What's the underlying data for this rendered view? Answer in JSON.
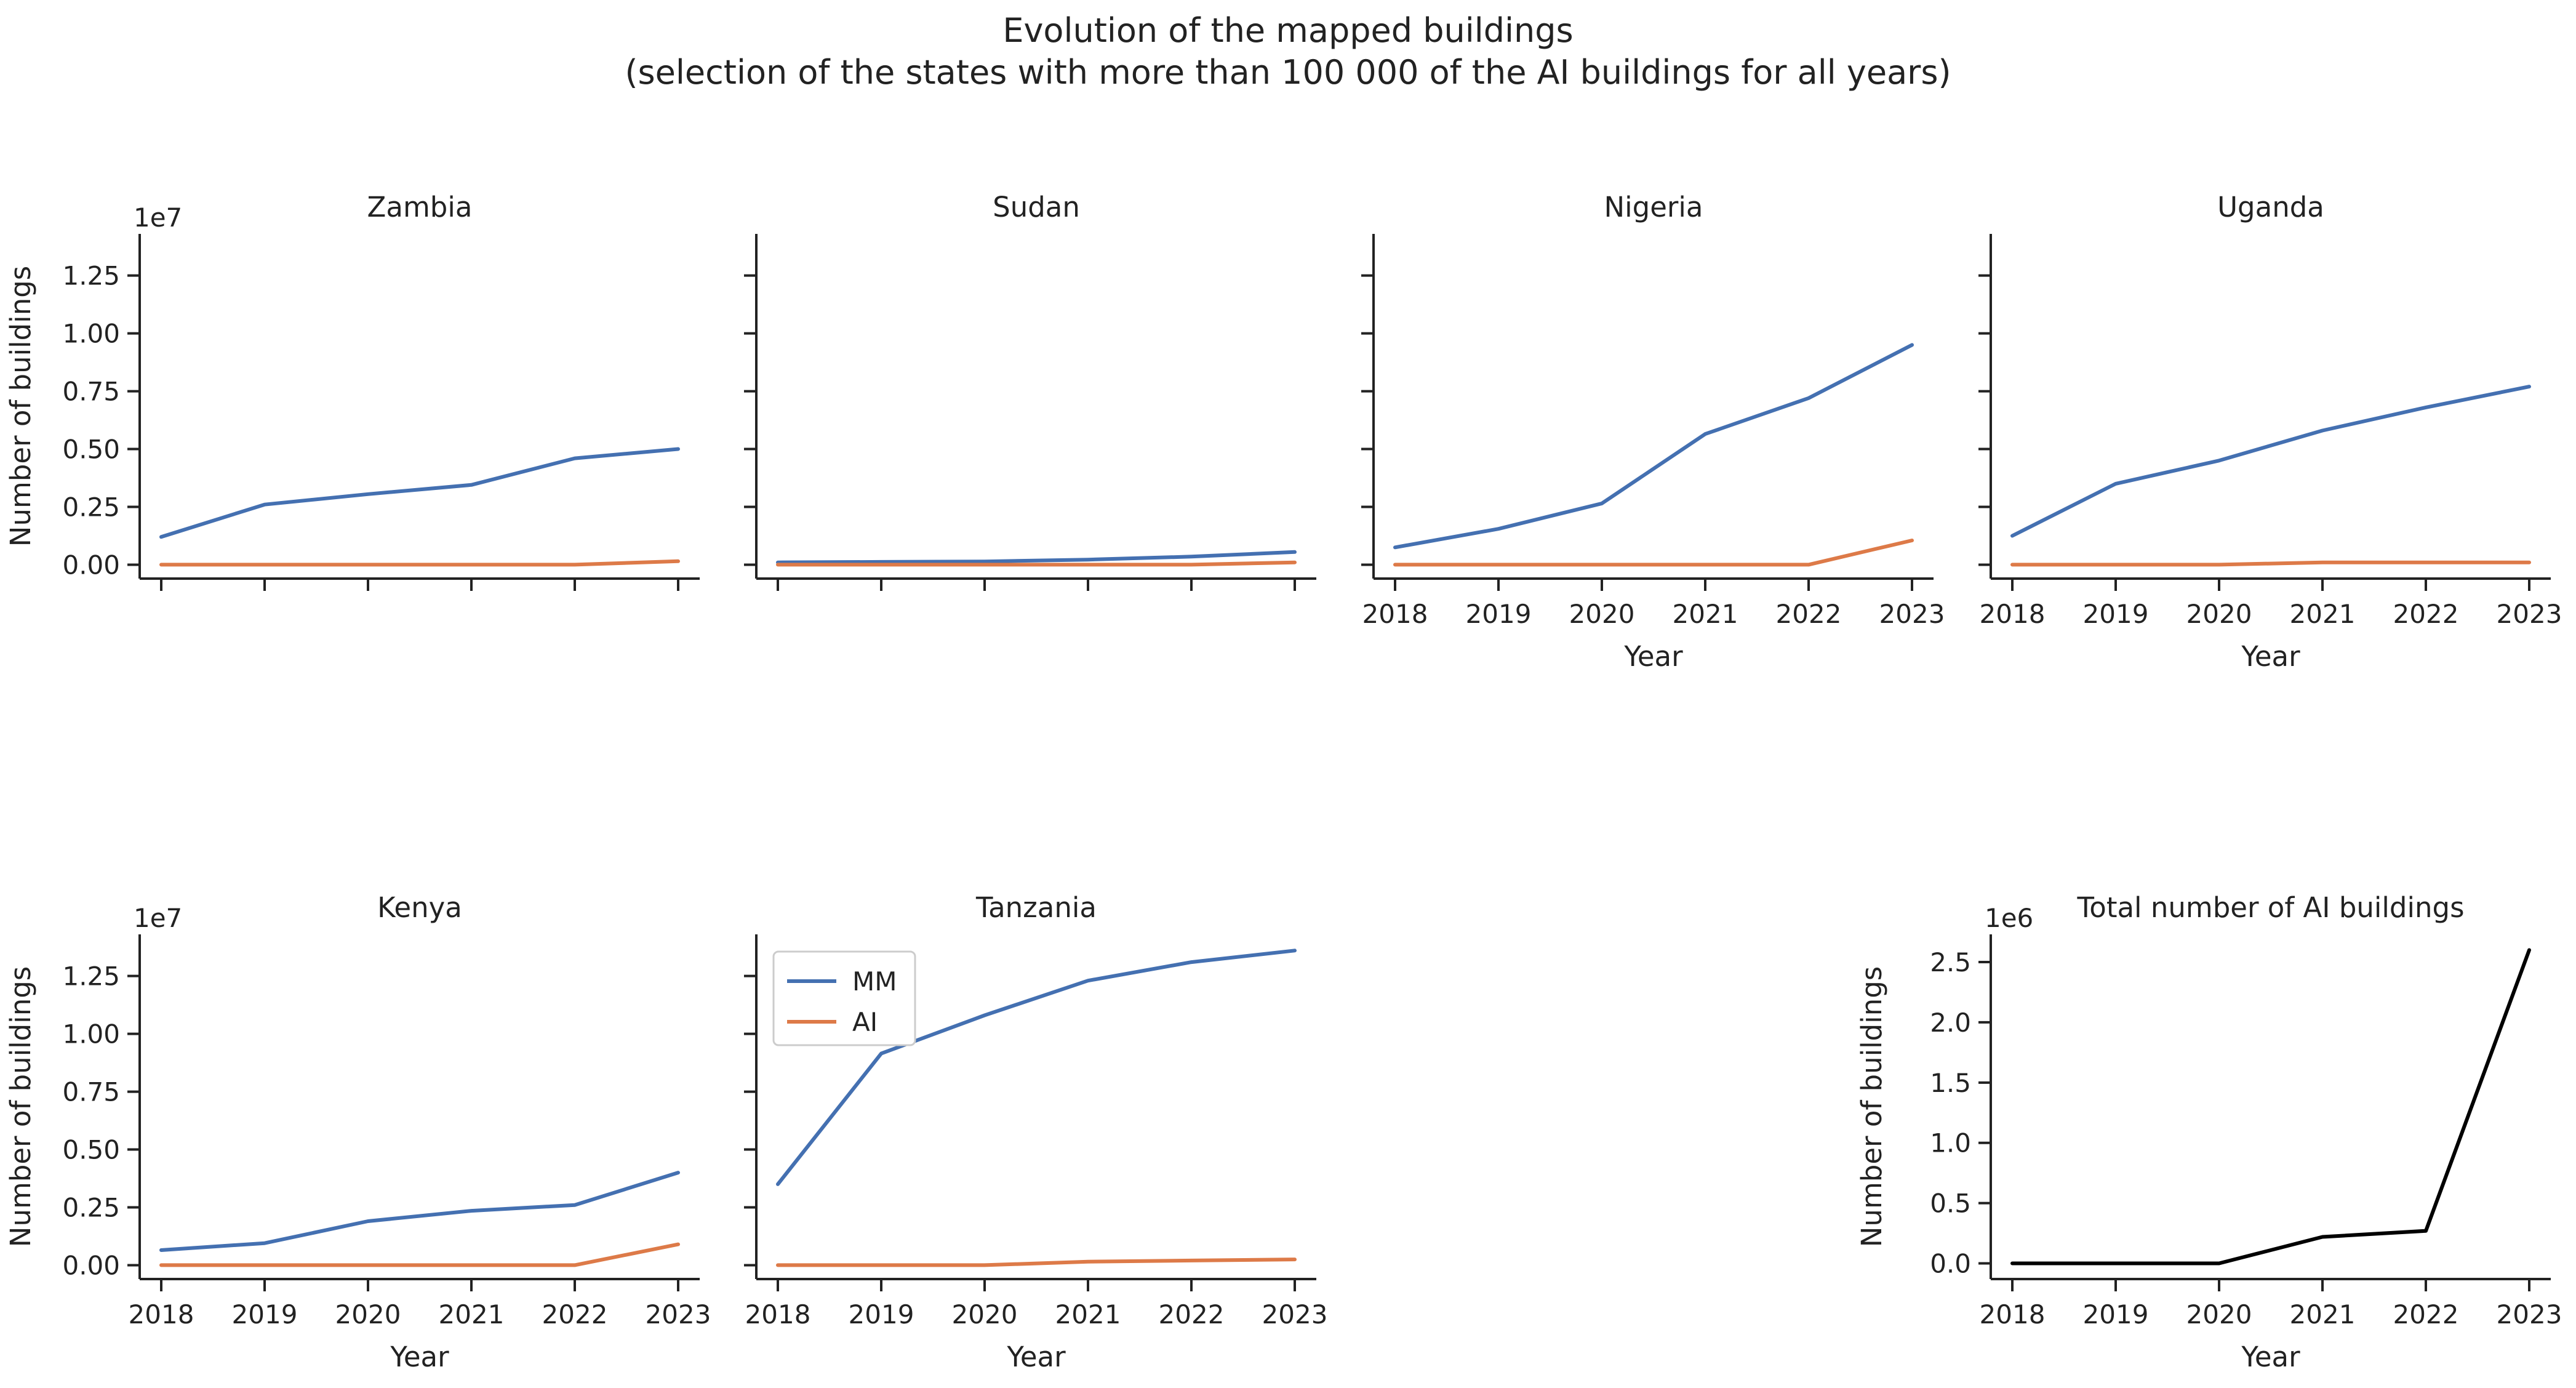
{
  "figure": {
    "title": "Evolution of the mapped buildings",
    "subtitle": "(selection of the states with more than 100 000 of the AI buildings for all years)"
  },
  "colors": {
    "MM": "#4470b1",
    "AI": "#dd7a48",
    "total": "#000000",
    "axis": "#222222"
  },
  "chart_data": [
    {
      "type": "line",
      "title": "Zambia",
      "x": [
        2018,
        2019,
        2020,
        2021,
        2022,
        2023
      ],
      "series": [
        {
          "name": "MM",
          "values": [
            1200000.0,
            2600000.0,
            3050000.0,
            3450000.0,
            4600000.0,
            5000000.0
          ]
        },
        {
          "name": "AI",
          "values": [
            0,
            0,
            0,
            0,
            0,
            150000.0
          ]
        }
      ],
      "ylim": [
        -600000.0,
        14300000.0
      ],
      "yticks": [
        0,
        2500000.0,
        5000000.0,
        7500000.0,
        10000000.0,
        12500000.0
      ],
      "ytick_labels": [
        "0.00",
        "0.25",
        "0.50",
        "0.75",
        "1.00",
        "1.25"
      ],
      "offset_label": "1e7",
      "ylabel": "Number of buildings",
      "xlabel": "",
      "xtick_labels": [],
      "legend": null
    },
    {
      "type": "line",
      "title": "Sudan",
      "x": [
        2018,
        2019,
        2020,
        2021,
        2022,
        2023
      ],
      "series": [
        {
          "name": "MM",
          "values": [
            100000.0,
            120000.0,
            140000.0,
            220000.0,
            350000.0,
            550000.0
          ]
        },
        {
          "name": "AI",
          "values": [
            0,
            0,
            0,
            0,
            0,
            100000.0
          ]
        }
      ],
      "ylim": [
        -600000.0,
        14300000.0
      ],
      "yticks": [
        0,
        2500000.0,
        5000000.0,
        7500000.0,
        10000000.0,
        12500000.0
      ],
      "ytick_labels": [],
      "offset_label": "",
      "ylabel": "",
      "xlabel": "",
      "xtick_labels": [],
      "legend": null
    },
    {
      "type": "line",
      "title": "Nigeria",
      "x": [
        2018,
        2019,
        2020,
        2021,
        2022,
        2023
      ],
      "series": [
        {
          "name": "MM",
          "values": [
            750000.0,
            1550000.0,
            2650000.0,
            5650000.0,
            7200000.0,
            9500000.0
          ]
        },
        {
          "name": "AI",
          "values": [
            0,
            0,
            0,
            0,
            0,
            1050000.0
          ]
        }
      ],
      "ylim": [
        -600000.0,
        14300000.0
      ],
      "yticks": [
        0,
        2500000.0,
        5000000.0,
        7500000.0,
        10000000.0,
        12500000.0
      ],
      "ytick_labels": [],
      "offset_label": "",
      "ylabel": "",
      "xlabel": "Year",
      "xtick_labels": [
        "2018",
        "2019",
        "2020",
        "2021",
        "2022",
        "2023"
      ],
      "legend": null
    },
    {
      "type": "line",
      "title": "Uganda",
      "x": [
        2018,
        2019,
        2020,
        2021,
        2022,
        2023
      ],
      "series": [
        {
          "name": "MM",
          "values": [
            1250000.0,
            3500000.0,
            4500000.0,
            5800000.0,
            6800000.0,
            7700000.0
          ]
        },
        {
          "name": "AI",
          "values": [
            0,
            0,
            0,
            100000.0,
            100000.0,
            100000.0
          ]
        }
      ],
      "ylim": [
        -600000.0,
        14300000.0
      ],
      "yticks": [
        0,
        2500000.0,
        5000000.0,
        7500000.0,
        10000000.0,
        12500000.0
      ],
      "ytick_labels": [],
      "offset_label": "",
      "ylabel": "",
      "xlabel": "Year",
      "xtick_labels": [
        "2018",
        "2019",
        "2020",
        "2021",
        "2022",
        "2023"
      ],
      "legend": null
    },
    {
      "type": "line",
      "title": "Kenya",
      "x": [
        2018,
        2019,
        2020,
        2021,
        2022,
        2023
      ],
      "series": [
        {
          "name": "MM",
          "values": [
            650000.0,
            950000.0,
            1900000.0,
            2350000.0,
            2600000.0,
            4000000.0
          ]
        },
        {
          "name": "AI",
          "values": [
            0,
            0,
            0,
            0,
            0,
            900000.0
          ]
        }
      ],
      "ylim": [
        -600000.0,
        14300000.0
      ],
      "yticks": [
        0,
        2500000.0,
        5000000.0,
        7500000.0,
        10000000.0,
        12500000.0
      ],
      "ytick_labels": [
        "0.00",
        "0.25",
        "0.50",
        "0.75",
        "1.00",
        "1.25"
      ],
      "offset_label": "1e7",
      "ylabel": "Number of buildings",
      "xlabel": "Year",
      "xtick_labels": [
        "2018",
        "2019",
        "2020",
        "2021",
        "2022",
        "2023"
      ],
      "legend": null
    },
    {
      "type": "line",
      "title": "Tanzania",
      "x": [
        2018,
        2019,
        2020,
        2021,
        2022,
        2023
      ],
      "series": [
        {
          "name": "MM",
          "values": [
            3500000.0,
            9150000.0,
            10800000.0,
            12300000.0,
            13100000.0,
            13600000.0
          ]
        },
        {
          "name": "AI",
          "values": [
            0,
            0,
            0,
            150000.0,
            200000.0,
            250000.0
          ]
        }
      ],
      "ylim": [
        -600000.0,
        14300000.0
      ],
      "yticks": [
        0,
        2500000.0,
        5000000.0,
        7500000.0,
        10000000.0,
        12500000.0
      ],
      "ytick_labels": [],
      "offset_label": "",
      "ylabel": "",
      "xlabel": "Year",
      "xtick_labels": [
        "2018",
        "2019",
        "2020",
        "2021",
        "2022",
        "2023"
      ],
      "legend": {
        "position": "upper-left",
        "entries": [
          "MM",
          "AI"
        ]
      }
    },
    {
      "type": "line",
      "title": "Total number of AI buildings",
      "x": [
        2018,
        2019,
        2020,
        2021,
        2022,
        2023
      ],
      "series": [
        {
          "name": "",
          "values": [
            0,
            0,
            0,
            220000.0,
            270000.0,
            2600000.0
          ]
        }
      ],
      "ylim": [
        -130000.0,
        2730000.0
      ],
      "yticks": [
        0,
        500000.0,
        1000000.0,
        1500000.0,
        2000000.0,
        2500000.0
      ],
      "ytick_labels": [
        "0.0",
        "0.5",
        "1.0",
        "1.5",
        "2.0",
        "2.5"
      ],
      "offset_label": "1e6",
      "ylabel": "Number of buildings",
      "xlabel": "Year",
      "xtick_labels": [
        "2018",
        "2019",
        "2020",
        "2021",
        "2022",
        "2023"
      ],
      "legend": null
    }
  ]
}
